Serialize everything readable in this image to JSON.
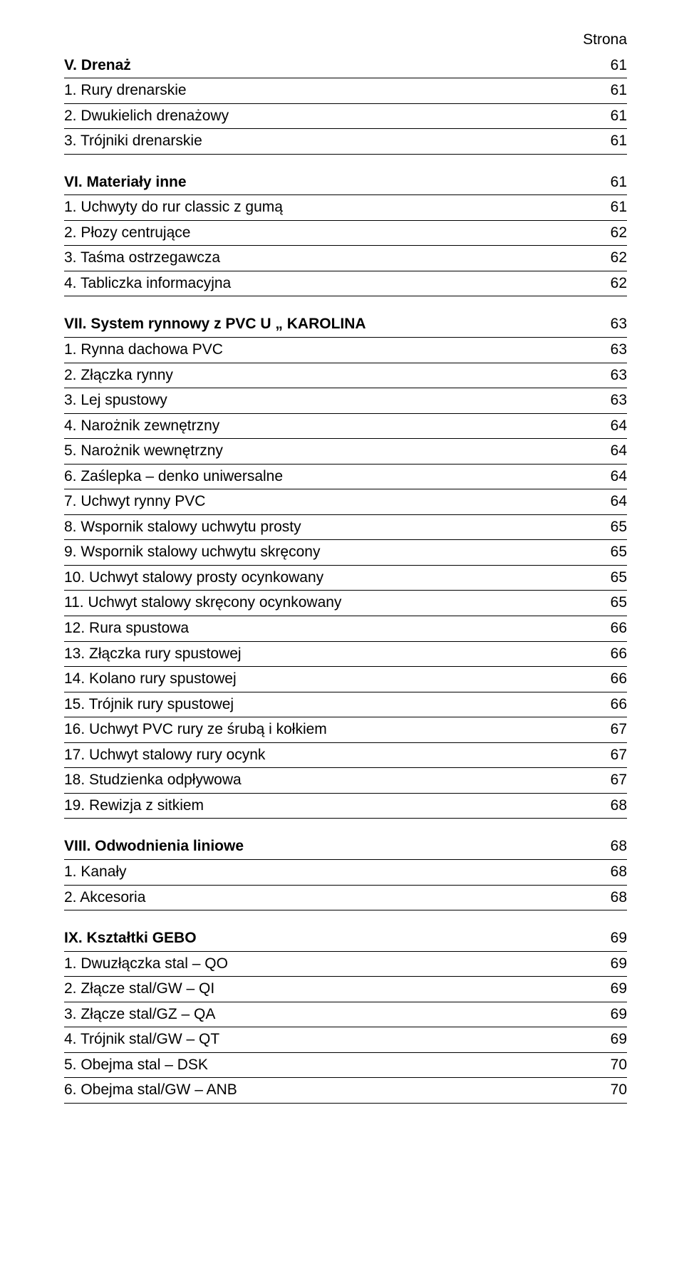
{
  "header_label": "Strona",
  "sections": [
    {
      "title": "V. Drenaż",
      "title_page": "61",
      "rows": [
        {
          "label": "1. Rury drenarskie",
          "page": "61"
        },
        {
          "label": "2. Dwukielich drenażowy",
          "page": "61"
        },
        {
          "label": "3. Trójniki drenarskie",
          "page": "61"
        }
      ]
    },
    {
      "title": "VI. Materiały inne",
      "title_page": "61",
      "rows": [
        {
          "label": "1. Uchwyty do rur classic z gumą",
          "page": "61"
        },
        {
          "label": "2. Płozy centrujące",
          "page": "62"
        },
        {
          "label": "3. Taśma ostrzegawcza",
          "page": "62"
        },
        {
          "label": "4. Tabliczka informacyjna",
          "page": "62"
        }
      ]
    },
    {
      "title": "VII. System rynnowy z PVC U „ KAROLINA",
      "title_page": "63",
      "rows": [
        {
          "label": "1. Rynna dachowa PVC",
          "page": "63"
        },
        {
          "label": "2. Złączka rynny",
          "page": "63"
        },
        {
          "label": "3. Lej spustowy",
          "page": "63"
        },
        {
          "label": "4. Narożnik zewnętrzny",
          "page": "64"
        },
        {
          "label": "5. Narożnik wewnętrzny",
          "page": "64"
        },
        {
          "label": "6. Zaślepka – denko uniwersalne",
          "page": "64"
        },
        {
          "label": "7. Uchwyt rynny PVC",
          "page": "64"
        },
        {
          "label": "8. Wspornik stalowy uchwytu prosty",
          "page": "65"
        },
        {
          "label": "9. Wspornik stalowy uchwytu skręcony",
          "page": "65"
        },
        {
          "label": "10. Uchwyt stalowy prosty ocynkowany",
          "page": "65"
        },
        {
          "label": "11. Uchwyt stalowy skręcony ocynkowany",
          "page": "65"
        },
        {
          "label": "12. Rura spustowa",
          "page": "66"
        },
        {
          "label": "13. Złączka rury spustowej",
          "page": "66"
        },
        {
          "label": "14. Kolano rury spustowej",
          "page": "66"
        },
        {
          "label": "15. Trójnik rury spustowej",
          "page": "66"
        },
        {
          "label": "16. Uchwyt PVC rury ze śrubą i kołkiem",
          "page": "67"
        },
        {
          "label": "17. Uchwyt stalowy rury ocynk",
          "page": "67"
        },
        {
          "label": "18. Studzienka odpływowa",
          "page": "67"
        },
        {
          "label": "19. Rewizja z sitkiem",
          "page": "68"
        }
      ]
    },
    {
      "title": "VIII. Odwodnienia liniowe",
      "title_page": "68",
      "rows": [
        {
          "label": "1. Kanały",
          "page": "68"
        },
        {
          "label": "2. Akcesoria",
          "page": "68"
        }
      ]
    },
    {
      "title": "IX. Kształtki GEBO",
      "title_page": "69",
      "rows": [
        {
          "label": "1. Dwuzłączka stal – QO",
          "page": "69"
        },
        {
          "label": "2. Złącze stal/GW – QI",
          "page": "69"
        },
        {
          "label": "3. Złącze stal/GZ – QA",
          "page": "69"
        },
        {
          "label": "4. Trójnik stal/GW – QT",
          "page": "69"
        },
        {
          "label": "5. Obejma stal – DSK",
          "page": "70"
        },
        {
          "label": "6. Obejma stal/GW – ANB",
          "page": "70"
        }
      ]
    }
  ]
}
